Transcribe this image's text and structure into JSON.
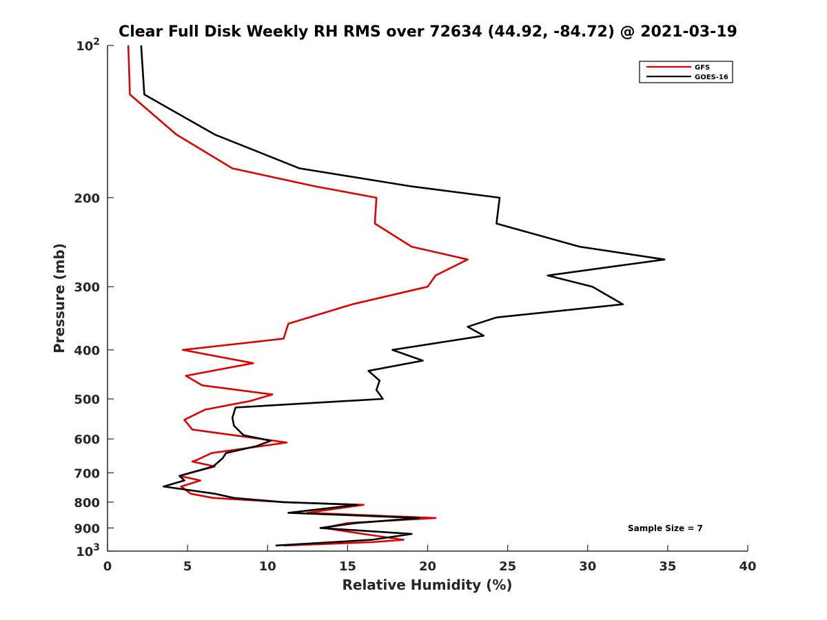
{
  "chart_data": {
    "type": "line",
    "title": "Clear Full Disk Weekly RH RMS over 72634 (44.92, -84.72) @ 2021-03-19",
    "xlabel": "Relative Humidity (%)",
    "ylabel": "Pressure (mb)",
    "xlim": [
      0,
      40
    ],
    "ylim": [
      100,
      1000
    ],
    "yscale": "log",
    "y_reversed": true,
    "grid": false,
    "x_ticks": [
      {
        "value": 0,
        "label": "0"
      },
      {
        "value": 5,
        "label": "5"
      },
      {
        "value": 10,
        "label": "10"
      },
      {
        "value": 15,
        "label": "15"
      },
      {
        "value": 20,
        "label": "20"
      },
      {
        "value": 25,
        "label": "25"
      },
      {
        "value": 30,
        "label": "30"
      },
      {
        "value": 35,
        "label": "35"
      },
      {
        "value": 40,
        "label": "40"
      }
    ],
    "y_ticks": [
      {
        "value": 100,
        "base": "10",
        "exp": "2"
      },
      {
        "value": 200,
        "base": "200",
        "exp": ""
      },
      {
        "value": 300,
        "base": "300",
        "exp": ""
      },
      {
        "value": 400,
        "base": "400",
        "exp": ""
      },
      {
        "value": 500,
        "base": "500",
        "exp": ""
      },
      {
        "value": 600,
        "base": "600",
        "exp": ""
      },
      {
        "value": 700,
        "base": "700",
        "exp": ""
      },
      {
        "value": 800,
        "base": "800",
        "exp": ""
      },
      {
        "value": 900,
        "base": "900",
        "exp": ""
      },
      {
        "value": 1000,
        "base": "10",
        "exp": "3"
      }
    ],
    "legend_position": "top-right",
    "annotation": "Sample Size = 7",
    "series": [
      {
        "name": "GFS",
        "color": "#e00000",
        "points": [
          [
            1.3,
            100
          ],
          [
            1.4,
            125
          ],
          [
            4.3,
            150
          ],
          [
            7.8,
            175
          ],
          [
            13,
            190
          ],
          [
            16.8,
            200
          ],
          [
            16.7,
            225
          ],
          [
            19,
            250
          ],
          [
            22.5,
            265
          ],
          [
            20.5,
            285
          ],
          [
            20,
            300
          ],
          [
            15.3,
            325
          ],
          [
            11.3,
            355
          ],
          [
            11,
            380
          ],
          [
            4.7,
            400
          ],
          [
            9.1,
            425
          ],
          [
            4.9,
            450
          ],
          [
            5.9,
            470
          ],
          [
            10.3,
            490
          ],
          [
            8.9,
            505
          ],
          [
            6.1,
            525
          ],
          [
            4.8,
            550
          ],
          [
            5.3,
            575
          ],
          [
            9.6,
            600
          ],
          [
            11.2,
            610
          ],
          [
            6.5,
            640
          ],
          [
            5.6,
            660
          ],
          [
            5.3,
            665
          ],
          [
            6.7,
            680
          ],
          [
            4.5,
            710
          ],
          [
            5.8,
            725
          ],
          [
            4.6,
            745
          ],
          [
            5.2,
            770
          ],
          [
            6.6,
            785
          ],
          [
            11,
            800
          ],
          [
            16,
            810
          ],
          [
            12.5,
            840
          ],
          [
            20.5,
            860
          ],
          [
            15,
            880
          ],
          [
            13.5,
            900
          ],
          [
            16,
            925
          ],
          [
            18.5,
            950
          ],
          [
            16.5,
            960
          ],
          [
            11,
            975
          ]
        ]
      },
      {
        "name": "GOES-16",
        "color": "#000000",
        "points": [
          [
            2.1,
            100
          ],
          [
            2.3,
            125
          ],
          [
            6.7,
            150
          ],
          [
            12,
            175
          ],
          [
            19,
            190
          ],
          [
            24.5,
            200
          ],
          [
            24.3,
            225
          ],
          [
            29.5,
            250
          ],
          [
            34.8,
            265
          ],
          [
            27.5,
            285
          ],
          [
            30.3,
            300
          ],
          [
            32.2,
            325
          ],
          [
            24.3,
            345
          ],
          [
            22.5,
            360
          ],
          [
            23.5,
            375
          ],
          [
            17.8,
            400
          ],
          [
            19.7,
            420
          ],
          [
            16.3,
            440
          ],
          [
            17,
            460
          ],
          [
            16.8,
            480
          ],
          [
            17.2,
            500
          ],
          [
            8,
            520
          ],
          [
            7.8,
            545
          ],
          [
            7.9,
            565
          ],
          [
            8.5,
            590
          ],
          [
            10.2,
            605
          ],
          [
            9.3,
            620
          ],
          [
            7.4,
            640
          ],
          [
            7.2,
            655
          ],
          [
            6.6,
            680
          ],
          [
            4.5,
            710
          ],
          [
            4.8,
            725
          ],
          [
            3.5,
            745
          ],
          [
            6.7,
            770
          ],
          [
            7.9,
            785
          ],
          [
            11,
            800
          ],
          [
            15.6,
            810
          ],
          [
            11.3,
            840
          ],
          [
            19.5,
            860
          ],
          [
            15.5,
            880
          ],
          [
            13.3,
            900
          ],
          [
            19,
            925
          ],
          [
            16.5,
            950
          ],
          [
            10.5,
            975
          ]
        ]
      }
    ]
  }
}
